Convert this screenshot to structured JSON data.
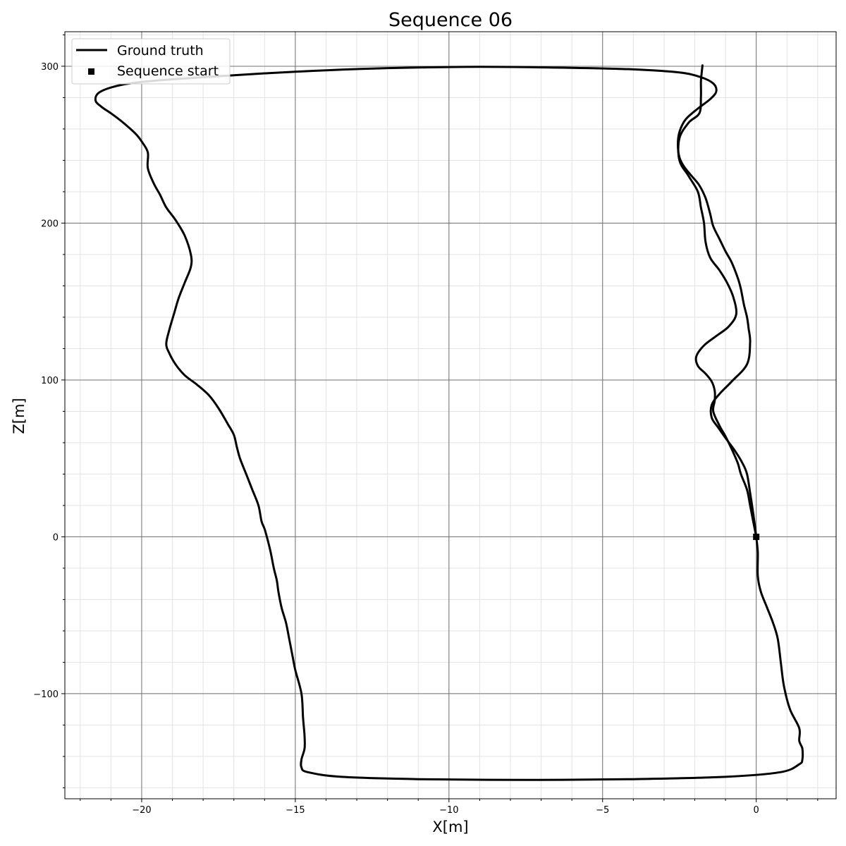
{
  "chart_data": {
    "type": "line",
    "title": "Sequence 06",
    "xlabel": "X[m]",
    "ylabel": "Z[m]",
    "xlim": [
      -22.5,
      2.6
    ],
    "ylim": [
      -167,
      322
    ],
    "xticks": [
      -20,
      -15,
      -10,
      -5,
      0
    ],
    "xtick_labels": [
      "−20",
      "−15",
      "−10",
      "−5",
      "0"
    ],
    "yticks": [
      -100,
      0,
      100,
      200,
      300
    ],
    "ytick_labels": [
      "−100",
      "0",
      "100",
      "200",
      "300"
    ],
    "minor_x_step": 1,
    "minor_y_step": 20,
    "grid": true,
    "legend_position": "top-left",
    "series": [
      {
        "name": "Ground truth",
        "color": "#000000",
        "points": [
          [
            0.0,
            0.0
          ],
          [
            0.05,
            -10
          ],
          [
            0.05,
            -25
          ],
          [
            0.15,
            -35
          ],
          [
            0.35,
            -45
          ],
          [
            0.55,
            -55
          ],
          [
            0.7,
            -65
          ],
          [
            0.8,
            -80
          ],
          [
            0.9,
            -95
          ],
          [
            1.1,
            -110
          ],
          [
            1.4,
            -122
          ],
          [
            1.4,
            -130
          ],
          [
            1.5,
            -135
          ],
          [
            1.5,
            -142
          ],
          [
            1.4,
            -145
          ],
          [
            0.8,
            -150
          ],
          [
            -1.0,
            -153
          ],
          [
            -4.0,
            -154.5
          ],
          [
            -7.5,
            -155
          ],
          [
            -11.0,
            -154.5
          ],
          [
            -13.5,
            -153
          ],
          [
            -14.6,
            -150
          ],
          [
            -14.8,
            -147
          ],
          [
            -14.8,
            -142
          ],
          [
            -14.7,
            -135
          ],
          [
            -14.7,
            -127
          ],
          [
            -14.75,
            -115
          ],
          [
            -14.8,
            -100
          ],
          [
            -15.0,
            -85
          ],
          [
            -15.1,
            -75
          ],
          [
            -15.2,
            -65
          ],
          [
            -15.3,
            -55
          ],
          [
            -15.45,
            -45
          ],
          [
            -15.55,
            -35
          ],
          [
            -15.6,
            -28
          ],
          [
            -15.7,
            -20
          ],
          [
            -15.8,
            -10
          ],
          [
            -15.9,
            -2
          ],
          [
            -16.0,
            5
          ],
          [
            -16.1,
            10
          ],
          [
            -16.2,
            20
          ],
          [
            -16.4,
            30
          ],
          [
            -16.6,
            40
          ],
          [
            -16.8,
            50
          ],
          [
            -16.9,
            57
          ],
          [
            -17.0,
            65
          ],
          [
            -17.2,
            72
          ],
          [
            -17.5,
            82
          ],
          [
            -17.8,
            90
          ],
          [
            -18.2,
            97
          ],
          [
            -18.6,
            103
          ],
          [
            -18.9,
            110
          ],
          [
            -19.1,
            117
          ],
          [
            -19.2,
            123
          ],
          [
            -19.1,
            132
          ],
          [
            -18.95,
            142
          ],
          [
            -18.8,
            152
          ],
          [
            -18.6,
            162
          ],
          [
            -18.4,
            172
          ],
          [
            -18.4,
            180
          ],
          [
            -18.6,
            192
          ],
          [
            -18.9,
            202
          ],
          [
            -19.2,
            210
          ],
          [
            -19.4,
            218
          ],
          [
            -19.6,
            225
          ],
          [
            -19.8,
            235
          ],
          [
            -19.8,
            245
          ],
          [
            -20.0,
            252
          ],
          [
            -20.2,
            257
          ],
          [
            -20.6,
            264
          ],
          [
            -21.0,
            270
          ],
          [
            -21.3,
            274
          ],
          [
            -21.5,
            278
          ],
          [
            -21.4,
            283
          ],
          [
            -20.9,
            287
          ],
          [
            -20.0,
            290
          ],
          [
            -18.0,
            293
          ],
          [
            -15.0,
            296.5
          ],
          [
            -12.0,
            298.8
          ],
          [
            -9.0,
            299.6
          ],
          [
            -6.0,
            299
          ],
          [
            -4.0,
            298
          ],
          [
            -2.5,
            296
          ],
          [
            -1.8,
            293
          ],
          [
            -1.4,
            289
          ],
          [
            -1.3,
            284
          ],
          [
            -1.5,
            279
          ],
          [
            -1.9,
            273
          ],
          [
            -2.3,
            266
          ],
          [
            -2.5,
            258
          ],
          [
            -2.55,
            250
          ],
          [
            -2.5,
            242
          ],
          [
            -2.35,
            236
          ],
          [
            -2.1,
            230
          ],
          [
            -1.85,
            224
          ],
          [
            -1.65,
            216
          ],
          [
            -1.5,
            206
          ],
          [
            -1.4,
            198
          ],
          [
            -1.2,
            190
          ],
          [
            -1.0,
            182
          ],
          [
            -0.8,
            175
          ],
          [
            -0.6,
            165
          ],
          [
            -0.5,
            158
          ],
          [
            -0.4,
            148
          ],
          [
            -0.3,
            140
          ],
          [
            -0.25,
            133
          ],
          [
            -0.2,
            124
          ],
          [
            -0.3,
            110
          ],
          [
            -0.8,
            99
          ],
          [
            -1.2,
            91
          ],
          [
            -1.45,
            84
          ],
          [
            -1.45,
            76
          ],
          [
            -1.25,
            70
          ],
          [
            -1.0,
            63
          ],
          [
            -0.7,
            55
          ],
          [
            -0.45,
            47
          ],
          [
            -0.3,
            40
          ],
          [
            -0.2,
            28
          ],
          [
            -0.12,
            18
          ],
          [
            -0.05,
            8
          ],
          [
            0.0,
            0.0
          ]
        ]
      },
      {
        "name": "Ground truth",
        "color": "#000000",
        "points": [
          [
            0.0,
            0.0
          ],
          [
            -0.1,
            10
          ],
          [
            -0.2,
            20
          ],
          [
            -0.3,
            30
          ],
          [
            -0.5,
            40
          ],
          [
            -0.6,
            47
          ],
          [
            -0.8,
            56
          ],
          [
            -1.0,
            64
          ],
          [
            -1.2,
            71
          ],
          [
            -1.4,
            80
          ],
          [
            -1.35,
            87
          ],
          [
            -1.35,
            93
          ],
          [
            -1.45,
            99
          ],
          [
            -1.65,
            104
          ],
          [
            -1.9,
            109
          ],
          [
            -1.95,
            115
          ],
          [
            -1.7,
            122
          ],
          [
            -1.3,
            128
          ],
          [
            -0.9,
            134
          ],
          [
            -0.65,
            142
          ],
          [
            -0.75,
            153
          ],
          [
            -0.95,
            162
          ],
          [
            -1.2,
            170
          ],
          [
            -1.5,
            178
          ],
          [
            -1.65,
            188
          ],
          [
            -1.7,
            200
          ],
          [
            -1.8,
            210
          ],
          [
            -1.9,
            220
          ],
          [
            -2.2,
            230
          ],
          [
            -2.5,
            240
          ],
          [
            -2.5,
            254
          ],
          [
            -2.2,
            264
          ],
          [
            -1.85,
            270
          ],
          [
            -1.8,
            280
          ],
          [
            -1.8,
            290
          ],
          [
            -1.78,
            295
          ],
          [
            -1.75,
            300.5
          ]
        ]
      }
    ],
    "legend": [
      {
        "label": "Ground truth",
        "marker": "line"
      },
      {
        "label": "Sequence start",
        "marker": "square"
      }
    ],
    "start_point": {
      "name": "Sequence start",
      "x": 0.0,
      "y": 0.0
    }
  }
}
